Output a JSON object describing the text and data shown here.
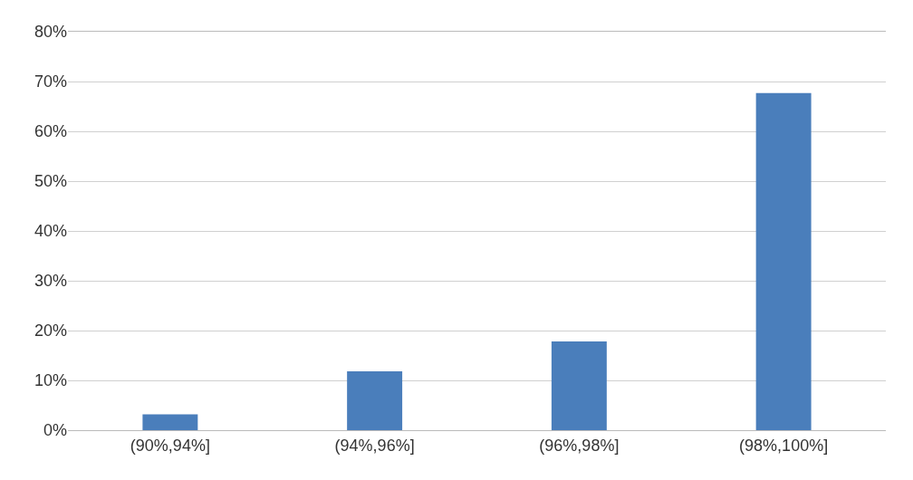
{
  "chart_data": {
    "type": "bar",
    "categories": [
      "(90%,94%]",
      "(94%,96%]",
      "(96%,98%]",
      "(98%,100%]"
    ],
    "values": [
      3.2,
      11.8,
      17.8,
      67.7
    ],
    "color": "#4a7ebb",
    "ylim": [
      0,
      80
    ],
    "yticks": [
      {
        "value": 0,
        "label": "0%"
      },
      {
        "value": 10,
        "label": "10%"
      },
      {
        "value": 20,
        "label": "20%"
      },
      {
        "value": 30,
        "label": "30%"
      },
      {
        "value": 40,
        "label": "40%"
      },
      {
        "value": 50,
        "label": "50%"
      },
      {
        "value": 60,
        "label": "60%"
      },
      {
        "value": 70,
        "label": "70%"
      },
      {
        "value": 80,
        "label": "80%"
      }
    ],
    "grid": "y"
  }
}
